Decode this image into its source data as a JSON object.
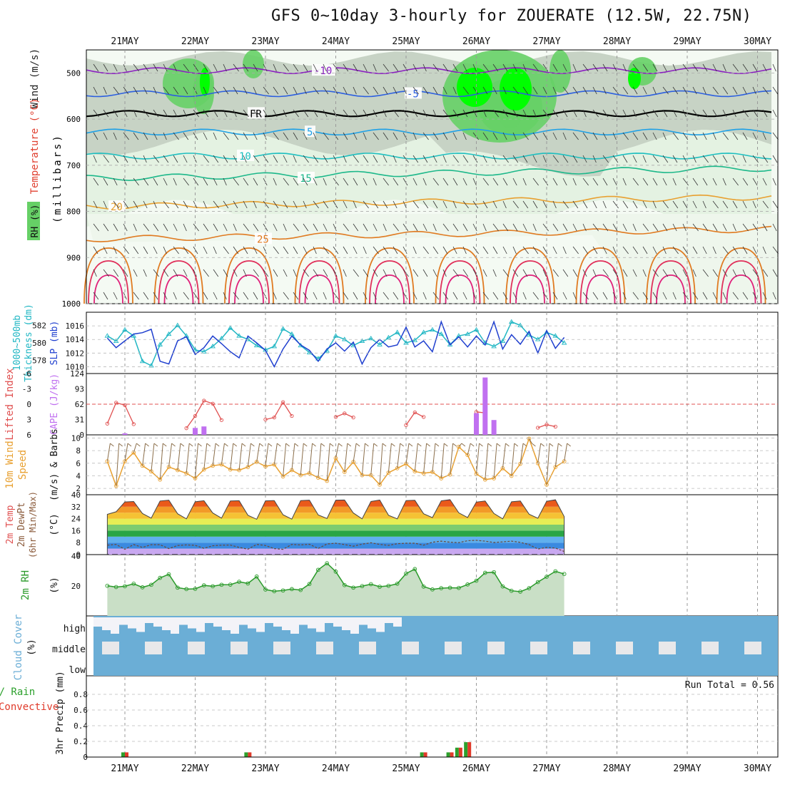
{
  "title": "GFS 0~10day 3-hourly for ZOUERATE (12.5W, 22.75N)",
  "colors": {
    "rh_light": "#e4f2e2",
    "rh_mid": "#c9dcc6",
    "rh_grey": "#b8c6b5",
    "rh_green": "#66d066",
    "rh_bright": "#00ff00",
    "rh_dark": "#00b000",
    "slp": "#1f3fcf",
    "thickness": "#22b7c4",
    "lifted": "#e05050",
    "cape": "#c070f0",
    "wind": "#e8a030",
    "barb": "#8b6e4a",
    "rh2m": "#2a9a2a",
    "cloud": "#6baed6",
    "precip_total": "#2ca02c",
    "precip_conv": "#e03a2a"
  },
  "panels": {
    "upper": {
      "axis_label": "(millibars)",
      "left_labels": [
        "Temperature (°C)",
        "Wind (m/s)",
        "RH (%)"
      ]
    },
    "slp": {
      "left_label_1": "1000~500mb",
      "left_label_2": "Thickness (dm)",
      "right_label": "SLP (mb)"
    },
    "cape": {
      "left_label": "Lifted Index",
      "right_label": "CAPE (J/kg)"
    },
    "wind": {
      "left_label_1": "10m Wind",
      "left_label_2": "Speed",
      "right_label": "(m/s) & Barbs"
    },
    "temp": {
      "left_label_1": "2m Temp",
      "left_label_2": "2m DewPt",
      "left_label_3": "(6hr Min/Max)",
      "right_label": "(°C)"
    },
    "rh": {
      "left_label": "2m RH",
      "right_label": "(%)"
    },
    "cloud": {
      "left_label": "Cloud Cover",
      "right_label": "(%)",
      "levels": [
        "high",
        "middle",
        "low"
      ]
    },
    "precip": {
      "left_label_1": "Total / Rain",
      "left_label_2": "Convective",
      "right_label": "3hr Precip (mm)",
      "run_total": "Run Total = 0.56"
    }
  },
  "chart_data": [
    {
      "type": "heatmap",
      "title": "GFS 0~10day 3-hourly for ZOUERATE (12.5W, 22.75N)",
      "x_dates": [
        "21MAY",
        "22MAY",
        "23MAY",
        "24MAY",
        "25MAY",
        "26MAY",
        "27MAY",
        "28MAY",
        "29MAY",
        "30MAY"
      ],
      "ylabel": "(millibars)",
      "yticks": [
        500,
        600,
        700,
        800,
        900,
        1000
      ],
      "ylim": [
        450,
        1000
      ],
      "temperature_levels": [
        {
          "label": "-10",
          "pressure": 495
        },
        {
          "label": "-5",
          "pressure": 545
        },
        {
          "label": "FR",
          "pressure": 588
        },
        {
          "label": "5",
          "pressure": 628
        },
        {
          "label": "10",
          "pressure": 680
        },
        {
          "label": "15",
          "pressure": 728
        },
        {
          "label": "20",
          "pressure": 790
        },
        {
          "label": "25",
          "pressure": 860
        }
      ],
      "rh_contours": [
        "30",
        "50",
        "50",
        "50",
        "60",
        "70",
        "80",
        "90"
      ]
    },
    {
      "type": "line",
      "series": [
        {
          "name": "SLP (mb)",
          "axis": "right",
          "ylim": [
            1009,
            1018
          ],
          "yticks": [
            1010,
            1012,
            1014,
            1016
          ],
          "values": [
            1014.2,
            1012.8,
            1013.8,
            1014.8,
            1015.0,
            1015.5,
            1010.8,
            1010.4,
            1013.8,
            1014.4,
            1011.8,
            1012.8,
            1014.5,
            1013.4,
            1012.2,
            1011.3,
            1014.5,
            1013.5,
            1012.4,
            1010.0,
            1012.6,
            1014.5,
            1013.2,
            1012.4,
            1010.8,
            1012.6,
            1013.5,
            1012.3,
            1013.6,
            1010.4,
            1012.8,
            1014.0,
            1012.9,
            1013.2,
            1015.8,
            1012.9,
            1013.8,
            1012.2,
            1016.6,
            1013.2,
            1014.4,
            1012.9,
            1014.5,
            1013.2,
            1016.6,
            1012.6,
            1014.7,
            1013.3,
            1015.2,
            1012.0,
            1015.3,
            1012.7,
            1014.3
          ]
        },
        {
          "name": "1000~500mb Thickness (dm)",
          "axis": "left",
          "ylim": [
            576.5,
            583.5
          ],
          "yticks": [
            578,
            580,
            582
          ],
          "values": [
            580.8,
            580.2,
            581.5,
            580.8,
            577.9,
            577.4,
            579.8,
            581.0,
            582.0,
            580.8,
            579.2,
            579.0,
            579.6,
            580.5,
            581.7,
            580.8,
            580.4,
            579.7,
            579.2,
            579.6,
            581.6,
            581.0,
            579.7,
            578.9,
            578.2,
            579.1,
            580.8,
            580.4,
            579.7,
            580.2,
            580.5,
            579.8,
            580.6,
            581.2,
            580.0,
            580.3,
            581.2,
            581.5,
            581.0,
            579.8,
            580.8,
            581.0,
            581.5,
            580.0,
            579.6,
            580.2,
            582.4,
            582.0,
            580.9,
            580.4,
            581.2,
            580.8,
            580.0
          ]
        }
      ]
    },
    {
      "type": "bar",
      "title": "Lifted Index / CAPE",
      "lifted_index": {
        "name": "Lifted Index",
        "yticks": [
          -6,
          -3,
          0,
          3,
          6
        ],
        "ylim": [
          -6,
          6
        ],
        "values": [
          3.8,
          -0.3,
          0.2,
          3.9,
          6.5,
          6.5,
          6.5,
          6.5,
          6.5,
          4.7,
          2.3,
          -0.7,
          -0.1,
          3.1,
          6.5,
          6.5,
          6.5,
          6.5,
          3.0,
          2.6,
          -0.4,
          2.3,
          6.5,
          6.5,
          6.5,
          6.5,
          2.5,
          1.8,
          2.6,
          6.5,
          6.5,
          6.5,
          6.5,
          6.5,
          4.1,
          1.6,
          2.5,
          6.5,
          6.5,
          6.5,
          6.5,
          6.5,
          1.5,
          1.7,
          6.5,
          6.5,
          6.5,
          6.5,
          6.5,
          4.6,
          4.0,
          4.4,
          6.5
        ]
      },
      "cape": {
        "name": "CAPE (J/kg)",
        "yticks": [
          0,
          31,
          62,
          93,
          124
        ],
        "ylim": [
          0,
          124
        ],
        "bars": [
          {
            "x_index": 2,
            "value": 3
          },
          {
            "x_index": 10,
            "value": 14
          },
          {
            "x_index": 11,
            "value": 17
          },
          {
            "x_index": 42,
            "value": 44
          },
          {
            "x_index": 43,
            "value": 116
          },
          {
            "x_index": 44,
            "value": 30
          }
        ]
      }
    },
    {
      "type": "line",
      "series": [
        {
          "name": "10m Wind Speed (m/s)",
          "ylim": [
            1,
            10.5
          ],
          "yticks": [
            2,
            4,
            6,
            8,
            10
          ],
          "values": [
            6.3,
            2.4,
            6.3,
            7.7,
            5.6,
            4.7,
            3.4,
            5.4,
            4.9,
            4.4,
            3.6,
            5.0,
            5.6,
            5.8,
            5.0,
            4.9,
            5.4,
            6.2,
            5.5,
            5.8,
            3.9,
            4.9,
            4.1,
            4.4,
            3.7,
            3.2,
            6.8,
            4.6,
            6.2,
            4.1,
            4.1,
            2.6,
            4.5,
            5.2,
            5.9,
            4.7,
            4.4,
            4.6,
            3.6,
            4.2,
            8.6,
            7.3,
            4.3,
            3.4,
            3.6,
            5.2,
            4.0,
            5.9,
            9.9,
            6.0,
            2.6,
            5.4,
            6.3
          ]
        }
      ]
    },
    {
      "type": "area",
      "title": "2m Temp / 2m DewPt (6hr Min/Max)",
      "yticks": [
        0,
        8,
        16,
        24,
        32,
        40
      ],
      "ylim": [
        0,
        40
      ],
      "temperature": [
        26.9,
        28.6,
        35.2,
        35.5,
        27.5,
        24.4,
        35.8,
        36.4,
        27.3,
        23.9,
        35.3,
        36.0,
        27.8,
        24.4,
        35.8,
        36.0,
        26.3,
        23.6,
        35.9,
        36.1,
        26.6,
        23.7,
        36.1,
        36.4,
        26.5,
        24.1,
        36.4,
        36.5,
        27.8,
        23.9,
        35.5,
        36.5,
        26.3,
        23.9,
        36.1,
        36.3,
        27.3,
        24.7,
        35.9,
        36.7,
        27.9,
        24.8,
        35.1,
        35.8,
        27.5,
        23.9,
        35.3,
        35.8,
        27.0,
        24.3,
        35.6,
        36.6,
        25.4
      ],
      "dewpoint": [
        6.3,
        6.8,
        3.5,
        6.7,
        4.8,
        6.6,
        6.6,
        4.0,
        6.1,
        6.5,
        6.2,
        4.2,
        5.9,
        6.3,
        6.4,
        4.8,
        3.6,
        6.8,
        6.1,
        4.0,
        3.5,
        6.8,
        6.5,
        6.9,
        4.1,
        7.1,
        7.6,
        6.7,
        5.6,
        7.0,
        7.9,
        6.8,
        6.2,
        7.3,
        7.6,
        7.6,
        6.3,
        8.3,
        9.0,
        8.3,
        8.0,
        9.3,
        9.5,
        9.0,
        8.1,
        8.5,
        9.0,
        8.2,
        6.7,
        3.7,
        4.8,
        4.4,
        2.1
      ]
    },
    {
      "type": "area",
      "series": [
        {
          "name": "2m RH (%)",
          "yticks": [
            20,
            40
          ],
          "ylim": [
            0,
            40
          ],
          "values": [
            20.1,
            19.3,
            19.8,
            21.5,
            19.1,
            20.8,
            25.4,
            27.8,
            18.9,
            17.9,
            18.1,
            20.4,
            19.8,
            20.8,
            20.9,
            22.8,
            21.7,
            26.3,
            17.6,
            16.5,
            17.0,
            17.9,
            17.3,
            21.3,
            30.8,
            35.2,
            29.6,
            20.6,
            18.9,
            19.9,
            21.2,
            19.5,
            20.1,
            21.5,
            28.3,
            31.3,
            19.6,
            17.7,
            18.5,
            18.8,
            18.7,
            21.0,
            23.5,
            28.8,
            29.2,
            19.7,
            16.8,
            16.2,
            18.5,
            22.6,
            26.2,
            29.8,
            28.0
          ]
        }
      ]
    },
    {
      "type": "heatmap",
      "title": "Cloud Cover (%)",
      "levels": [
        "high",
        "middle",
        "low"
      ],
      "note": "high/middle cloud mostly present across the period"
    },
    {
      "type": "bar",
      "title": "3hr Precip (mm)",
      "yticks": [
        0,
        0.2,
        0.4,
        0.6,
        0.8
      ],
      "ylim": [
        0,
        1.0
      ],
      "run_total": 0.56,
      "bars": [
        {
          "x_index": 2,
          "total": 0.06,
          "convective": 0.06
        },
        {
          "x_index": 16,
          "total": 0.06,
          "convective": 0.06
        },
        {
          "x_index": 36,
          "total": 0.06,
          "convective": 0.06
        },
        {
          "x_index": 39,
          "total": 0.06,
          "convective": 0.06
        },
        {
          "x_index": 40,
          "total": 0.12,
          "convective": 0.12
        },
        {
          "x_index": 41,
          "total": 0.19,
          "convective": 0.19
        }
      ]
    }
  ]
}
